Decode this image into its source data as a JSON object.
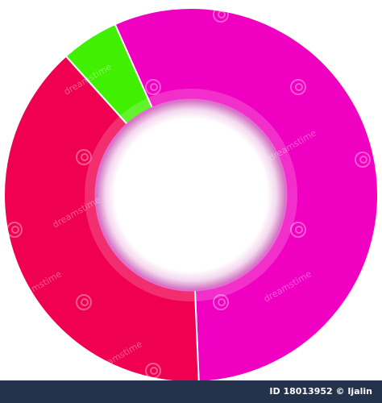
{
  "chart_data": {
    "type": "pie",
    "variant": "donut",
    "title": "",
    "slices": [
      {
        "value": 56,
        "color": "#f000c0"
      },
      {
        "value": 39,
        "color": "#f00050"
      },
      {
        "value": 5,
        "color": "#40f000"
      }
    ],
    "start_angle_deg": -24,
    "direction": "clockwise",
    "legend": "none",
    "data_labels": false
  },
  "watermark": {
    "text": "dreamstime",
    "icon": "swirl-icon"
  },
  "footer": {
    "id_text": "ID 18013952 © Ijalin",
    "background": "#24324c"
  }
}
